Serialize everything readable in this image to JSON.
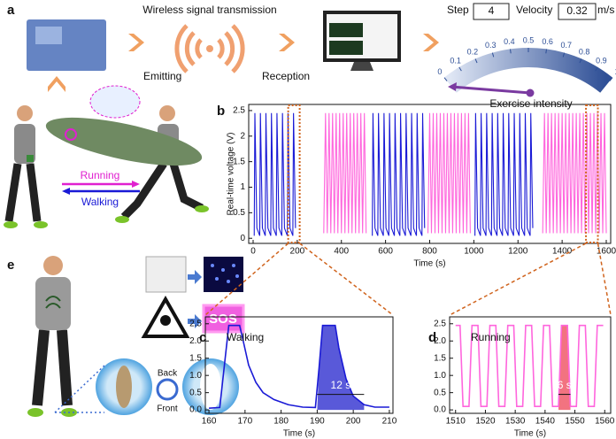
{
  "figure": {
    "panel_labels": [
      "a",
      "b",
      "c",
      "d",
      "e"
    ],
    "top": {
      "title": "Wireless signal transmission",
      "emitting": "Emitting",
      "reception": "Reception"
    },
    "readout": {
      "step_label": "Step",
      "step": 4,
      "velocity_label": "Velocity",
      "velocity": 0.32,
      "unit": "m/s"
    },
    "gauge": {
      "ticks": [
        0,
        0.1,
        0.2,
        0.3,
        0.4,
        0.5,
        0.6,
        0.7,
        0.8,
        0.9,
        1
      ],
      "label": "Exercise intensity"
    },
    "modes": {
      "running": "Running",
      "walking": "Walking"
    },
    "alerts": {
      "sos": "SOS",
      "back": "Back",
      "front": "Front"
    }
  },
  "chart_data": [
    {
      "type": "line",
      "ylabel": "Real-time voltage (V)",
      "xlabel": "Time (s)",
      "xlim": [
        -20,
        1620
      ],
      "ylim": [
        -0.1,
        2.62
      ],
      "xticks": [
        0,
        200,
        400,
        600,
        800,
        1000,
        1200,
        1400,
        1600
      ],
      "yticks": [
        0,
        0.5,
        1,
        1.5,
        2,
        2.5
      ],
      "series": [
        {
          "color": "#1a1ad6",
          "x": [
            5,
            8,
            17,
            30,
            33,
            42,
            55,
            58,
            67,
            80,
            83,
            92,
            105,
            108,
            117,
            130,
            133,
            142,
            155,
            158,
            167,
            180,
            183,
            192,
            300,
            540,
            543,
            552,
            565,
            568,
            577,
            590,
            593,
            602,
            615,
            618,
            627,
            640,
            643,
            652,
            665,
            668,
            677,
            690,
            693,
            702,
            715,
            718,
            727,
            740,
            743,
            752,
            765,
            768,
            777,
            900,
            1005,
            1008,
            1017,
            1030,
            1033,
            1042,
            1055,
            1058,
            1067,
            1080,
            1083,
            1092,
            1105,
            1108,
            1117,
            1130,
            1133,
            1142,
            1155,
            1158,
            1167,
            1180,
            1183,
            1192,
            1205,
            1208,
            1217,
            1230,
            1233,
            1242,
            1255,
            1258,
            1267
          ],
          "values": [
            0.05,
            2.45,
            0.2,
            0.05,
            2.45,
            0.2,
            0.05,
            2.45,
            0.2,
            0.05,
            2.45,
            0.2,
            0.05,
            2.45,
            0.2,
            0.05,
            2.45,
            0.2,
            0.05,
            2.45,
            0.2,
            0.05,
            2.45,
            0.2,
            null,
            0.05,
            2.45,
            0.2,
            0.05,
            2.45,
            0.2,
            0.05,
            2.45,
            0.2,
            0.05,
            2.45,
            0.2,
            0.05,
            2.45,
            0.2,
            0.05,
            2.45,
            0.2,
            0.05,
            2.45,
            0.2,
            0.05,
            2.45,
            0.2,
            0.05,
            2.45,
            0.2,
            0.05,
            2.45,
            0.2,
            null,
            0.05,
            2.45,
            0.2,
            0.05,
            2.45,
            0.2,
            0.05,
            2.45,
            0.2,
            0.05,
            2.45,
            0.2,
            0.05,
            2.45,
            0.2,
            0.05,
            2.45,
            0.2,
            0.05,
            2.45,
            0.2,
            0.05,
            2.45,
            0.2,
            0.05,
            2.45,
            0.2,
            0.05,
            2.45,
            0.2,
            0.05,
            2.45,
            0.2
          ]
        },
        {
          "color": "#ff66dd",
          "x": [
            320,
            328,
            336,
            344,
            352,
            360,
            368,
            376,
            384,
            392,
            400,
            408,
            416,
            424,
            432,
            440,
            448,
            456,
            464,
            472,
            480,
            488,
            496,
            504,
            512,
            650,
            792,
            800,
            808,
            816,
            824,
            832,
            840,
            848,
            856,
            864,
            872,
            880,
            888,
            896,
            904,
            912,
            920,
            928,
            936,
            944,
            952,
            960,
            968,
            976,
            984,
            1150,
            1312,
            1320,
            1328,
            1336,
            1344,
            1352,
            1360,
            1368,
            1376,
            1384,
            1392,
            1400,
            1408,
            1416,
            1424,
            1432,
            1440,
            1448,
            1456,
            1464,
            1472,
            1480,
            1488,
            1496,
            1504,
            1512,
            1520,
            1528,
            1536,
            1544,
            1552,
            1560,
            1568,
            1576,
            1584,
            1592,
            1600
          ],
          "values": [
            0.1,
            2.45,
            0.1,
            2.45,
            0.1,
            2.45,
            0.1,
            2.45,
            0.1,
            2.45,
            0.1,
            2.45,
            0.1,
            2.45,
            0.1,
            2.45,
            0.1,
            2.45,
            0.1,
            2.45,
            0.1,
            2.45,
            0.1,
            2.45,
            0.1,
            null,
            0.1,
            2.45,
            0.1,
            2.45,
            0.1,
            2.45,
            0.1,
            2.45,
            0.1,
            2.45,
            0.1,
            2.45,
            0.1,
            2.45,
            0.1,
            2.45,
            0.1,
            2.45,
            0.1,
            2.45,
            0.1,
            2.45,
            0.1,
            2.45,
            0.1,
            null,
            0.1,
            2.45,
            0.1,
            2.45,
            0.1,
            2.45,
            0.1,
            2.45,
            0.1,
            2.45,
            0.1,
            2.45,
            0.1,
            2.45,
            0.1,
            2.45,
            0.1,
            2.45,
            0.1,
            2.45,
            0.1,
            2.45,
            0.1,
            2.45,
            0.1,
            2.45,
            0.1,
            2.45,
            0.1,
            2.45,
            0.1,
            2.45,
            0.1,
            2.45,
            0.1,
            2.45,
            0.1
          ]
        }
      ]
    },
    {
      "type": "line",
      "title": "Walking",
      "xlabel": "Time (s)",
      "xlim": [
        159,
        211
      ],
      "ylim": [
        -0.1,
        2.7
      ],
      "xticks": [
        160,
        170,
        180,
        190,
        200,
        210
      ],
      "yticks": [
        {
          "value": 0,
          "label": "0.0"
        },
        0.5,
        {
          "value": 1,
          "label": "1.0"
        },
        1.5,
        {
          "value": 2,
          "label": "2.0"
        },
        2.5
      ],
      "series": [
        {
          "color": "#1a1ad6",
          "x": [
            160,
            163,
            164.5,
            165.5,
            168.5,
            169.5,
            171,
            173,
            175,
            178,
            182,
            186,
            189.5,
            190.5,
            191.5,
            195,
            196,
            198,
            200,
            203,
            206,
            210
          ],
          "values": [
            0.05,
            0.07,
            1.5,
            2.45,
            2.45,
            2.0,
            1.3,
            0.8,
            0.5,
            0.3,
            0.15,
            0.08,
            0.07,
            1.2,
            2.45,
            2.45,
            1.8,
            0.9,
            0.4,
            0.15,
            0.08,
            0.08
          ]
        }
      ],
      "highlight": [
        190,
        203
      ],
      "highlight_color": "#3c3cd2",
      "annotation": "12 s"
    },
    {
      "type": "line",
      "title": "Running",
      "xlabel": "Time (s)",
      "xlim": [
        1508,
        1562
      ],
      "ylim": [
        -0.1,
        2.7
      ],
      "xticks": [
        1510,
        1520,
        1530,
        1540,
        1550,
        1560
      ],
      "yticks": [
        {
          "value": 0,
          "label": "0.0"
        },
        0.5,
        {
          "value": 1,
          "label": "1.0"
        },
        1.5,
        {
          "value": 2,
          "label": "2.0"
        },
        2.5
      ],
      "series": [
        {
          "color": "#ff66dd",
          "x": [
            1510,
            1511.5,
            1512.5,
            1514.5,
            1515.5,
            1517.5,
            1518.5,
            1520.5,
            1521.5,
            1523.5,
            1524.5,
            1526.5,
            1527.5,
            1529.5,
            1530.5,
            1532.5,
            1533.5,
            1535.5,
            1536.5,
            1538.5,
            1539.5,
            1541.5,
            1542.5,
            1544.5,
            1545.5,
            1547.5,
            1548.5,
            1550.5,
            1551.5,
            1553.5,
            1554.5,
            1556.5,
            1557.5,
            1559.5
          ],
          "values": [
            2.45,
            2.45,
            0.1,
            0.1,
            2.45,
            2.45,
            0.1,
            0.1,
            2.45,
            2.45,
            0.1,
            0.1,
            2.45,
            2.45,
            0.1,
            0.1,
            2.45,
            2.45,
            0.1,
            0.1,
            2.45,
            2.45,
            0.1,
            0.1,
            2.45,
            2.45,
            0.1,
            0.1,
            2.45,
            2.45,
            0.1,
            0.1,
            2.45,
            2.45
          ]
        }
      ],
      "highlight": [
        1544.5,
        1548.5
      ],
      "highlight_color": "#f05a6a",
      "annotation": "6 s"
    }
  ]
}
